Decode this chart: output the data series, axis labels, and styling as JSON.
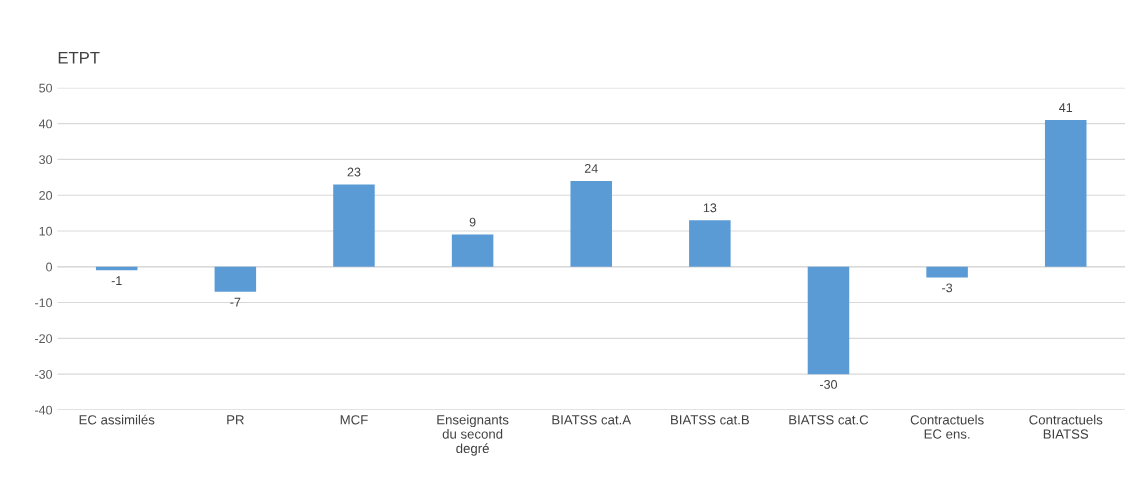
{
  "chart_data": {
    "type": "bar",
    "ylabel": "ETPT",
    "categories": [
      "EC assimilés",
      "PR",
      "MCF",
      "Enseignants du second degré",
      "BIATSS cat.A",
      "BIATSS cat.B",
      "BIATSS cat.C",
      "Contractuels EC ens.",
      "Contractuels BIATSS"
    ],
    "values": [
      -1,
      -7,
      23,
      9,
      24,
      13,
      -30,
      -3,
      41
    ],
    "color": "#5b9bd5",
    "data_labels": true,
    "grid": "y",
    "ylim": [
      -40,
      50
    ],
    "yticks": [
      -40,
      -30,
      -20,
      -10,
      0,
      10,
      20,
      30,
      40,
      50
    ]
  }
}
